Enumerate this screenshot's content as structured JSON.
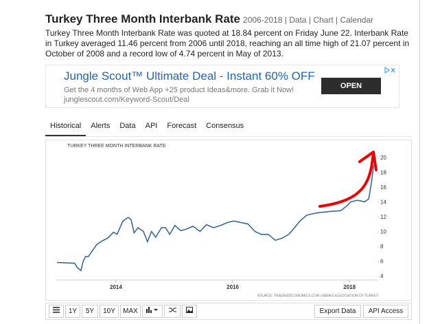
{
  "header": {
    "title": "Turkey Three Month Interbank Rate",
    "links": "2006-2018 | Data | Chart | Calendar",
    "description": "Turkey Three Month Interbank Rate was quoted at 18.84 percent on Friday June 22. Interbank Rate in Turkey averaged 11.46 percent from 2006 until 2018, reaching an all time high of 21.07 percent in October of 2008 and a record low of 4.74 percent in May of 2013."
  },
  "ad": {
    "headline": "Jungle Scout™ Ultimate Deal - Instant 60% OFF",
    "text": "Get the 4 months of Web App +25 product Ideas&more. Grab it Now!",
    "url": "junglescout.com/Keyword-Scout/Deal",
    "button": "OPEN"
  },
  "tabs": [
    "Historical",
    "Alerts",
    "Data",
    "API",
    "Forecast",
    "Consensus"
  ],
  "chart_data": {
    "type": "line",
    "title": "TURKEY THREE MONTH INTERBANK RATE",
    "source": "SOURCE: TRADINGECONOMICS.COM | BANKS ASSOCIATION OF TURKEY",
    "color": "#2d5f9e",
    "x": [
      2012.99,
      2013.29,
      2013.34,
      2013.4,
      2013.44,
      2013.48,
      2013.53,
      2013.58,
      2013.67,
      2013.76,
      2013.86,
      2013.96,
      2014.02,
      2014.12,
      2014.21,
      2014.26,
      2014.31,
      2014.38,
      2014.47,
      2014.54,
      2014.61,
      2014.68,
      2014.78,
      2014.85,
      2014.92,
      2015.01,
      2015.11,
      2015.2,
      2015.32,
      2015.44,
      2015.55,
      2015.67,
      2015.79,
      2015.91,
      2016.02,
      2016.14,
      2016.26,
      2016.38,
      2016.49,
      2016.61,
      2016.73,
      2016.85,
      2016.96,
      2017.06,
      2017.15,
      2017.27,
      2017.44,
      2017.67,
      2017.85,
      2017.96,
      2018.02,
      2018.14,
      2018.26,
      2018.33,
      2018.38,
      2018.41,
      2018.44
    ],
    "values": [
      5.9,
      5.8,
      5.2,
      4.8,
      6.1,
      6.7,
      6.7,
      7.3,
      8.3,
      8.8,
      9.2,
      10.0,
      9.7,
      11.5,
      12.0,
      11.7,
      9.9,
      10.6,
      10.1,
      8.7,
      10.1,
      9.3,
      10.6,
      10.6,
      9.7,
      10.9,
      10.2,
      10.4,
      10.8,
      10.1,
      11.0,
      10.6,
      10.9,
      11.3,
      11.5,
      11.3,
      11.1,
      10.1,
      9.7,
      9.7,
      8.9,
      9.2,
      9.7,
      10.6,
      11.5,
      12.3,
      12.6,
      12.8,
      12.9,
      13.6,
      14.1,
      14.3,
      14.1,
      14.5,
      16.9,
      18.8,
      19.3
    ],
    "xlim": [
      2012.99,
      2018.48
    ],
    "xticks": [
      2014,
      2016,
      2018
    ],
    "ylim": [
      3.53,
      21.3
    ],
    "yticks": [
      4,
      6,
      8,
      10,
      12,
      14,
      16,
      18,
      20
    ],
    "grid": false
  },
  "toolbar": [
    "1Y",
    "5Y",
    "10Y",
    "MAX",
    "Export Data",
    "API Access"
  ]
}
